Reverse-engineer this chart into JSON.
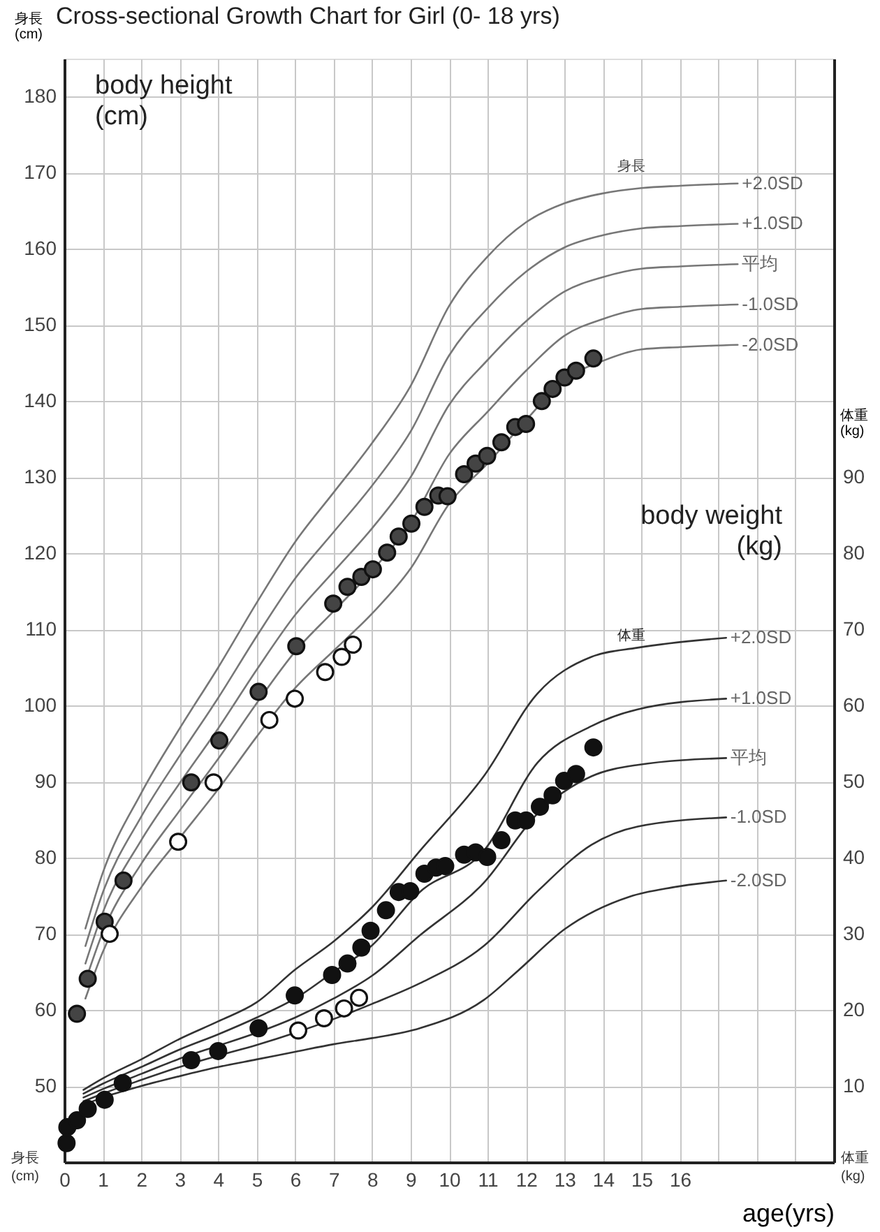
{
  "chart_data": {
    "type": "line",
    "title": "Cross-sectional Growth Chart for Girl (0- 18 yrs)",
    "xlabel": "age(yrs)",
    "ylabel": "身長\n(cm)",
    "y2label": "体重\n(kg)",
    "xlim": [
      0,
      20
    ],
    "xticks": [
      0,
      1,
      2,
      3,
      4,
      5,
      6,
      7,
      8,
      9,
      10,
      11,
      12,
      13,
      14,
      15,
      16,
      {
        "value": 17,
        "label": null
      },
      {
        "value": 18,
        "label": null
      },
      {
        "value": 19,
        "label": null
      },
      {
        "value": 20,
        "label": null
      }
    ],
    "ylim": [
      40,
      185
    ],
    "yticks": [
      50,
      60,
      70,
      80,
      90,
      100,
      110,
      120,
      130,
      140,
      150,
      160,
      170,
      180
    ],
    "y2lim": [
      0,
      145
    ],
    "y2ticks": [
      10,
      20,
      30,
      40,
      50,
      60,
      70,
      80,
      90
    ],
    "grid": true,
    "annotations": [
      "body height\n(cm)",
      "body weight\n(kg)",
      "身長",
      "体重",
      "身長\n(cm)",
      "体重\n(kg)"
    ],
    "series": [
      {
        "name": "+2.0SD",
        "color": "#777777",
        "x": [
          0.55,
          1,
          2,
          3,
          4,
          5,
          6,
          7,
          8,
          9,
          10,
          11,
          12,
          13,
          14,
          15,
          16,
          17.5
        ],
        "values": [
          70.7,
          78,
          88.5,
          97,
          105,
          113.5,
          121.5,
          128,
          134.5,
          142,
          152.5,
          159,
          163.5,
          166,
          167.3,
          168,
          168.3,
          168.6
        ]
      },
      {
        "name": "+1.0SD",
        "color": "#777777",
        "x": [
          0.55,
          1,
          2,
          3,
          4,
          5,
          6,
          7,
          8,
          9,
          10,
          11,
          12,
          13,
          14,
          15,
          16,
          17.5
        ],
        "values": [
          68.4,
          75.4,
          85.4,
          93.4,
          101,
          109.1,
          116.7,
          122.8,
          128.9,
          136,
          146,
          152.2,
          157,
          160.2,
          161.8,
          162.7,
          163,
          163.3
        ]
      },
      {
        "name": "平均",
        "color": "#777777",
        "x": [
          0.55,
          1,
          2,
          3,
          4,
          5,
          6,
          7,
          8,
          9,
          10,
          11,
          12,
          13,
          14,
          15,
          16,
          17.5
        ],
        "values": [
          66.1,
          72.8,
          82.3,
          89.8,
          97,
          104.7,
          111.9,
          117.6,
          123.3,
          130,
          139.5,
          145.4,
          150.5,
          154.4,
          156.3,
          157.4,
          157.7,
          158
        ]
      },
      {
        "name": "-1.0SD",
        "color": "#777777",
        "x": [
          0.55,
          1,
          2,
          3,
          4,
          5,
          6,
          7,
          8,
          9,
          10,
          11,
          12,
          13,
          14,
          15,
          16,
          17.5
        ],
        "values": [
          63.8,
          70.2,
          79.2,
          86.2,
          93,
          100.3,
          107.1,
          112.4,
          117.7,
          124,
          133,
          138.6,
          144,
          148.6,
          150.8,
          152.1,
          152.4,
          152.7
        ]
      },
      {
        "name": "-2.0SD",
        "color": "#777777",
        "x": [
          0.55,
          1,
          2,
          3,
          4,
          5,
          6,
          7,
          8,
          9,
          10,
          11,
          12,
          13,
          14,
          15,
          16,
          17.5
        ],
        "values": [
          61.5,
          67.6,
          76.1,
          82.6,
          89,
          95.9,
          102.3,
          107.2,
          112.1,
          118,
          126.5,
          131.8,
          137.5,
          142.8,
          145.3,
          146.8,
          147.1,
          147.4
        ]
      },
      {
        "name": "+2.0SD",
        "color": "#333333",
        "axis": "y2",
        "x": [
          0.5,
          1,
          2,
          3,
          4,
          5,
          6,
          7,
          8,
          9.24,
          10.9,
          12.3,
          13.7,
          14.9,
          17.2
        ],
        "values": [
          9.5,
          11,
          13.5,
          16.2,
          18.5,
          21,
          25.3,
          29,
          33.5,
          40.9,
          50.7,
          61.6,
          66.4,
          67.6,
          68.9
        ]
      },
      {
        "name": "+1.0SD",
        "color": "#333333",
        "axis": "y2",
        "x": [
          0.5,
          1,
          2,
          3,
          4,
          5,
          6,
          7,
          8,
          9.24,
          10.9,
          12.3,
          13.7,
          14.9,
          17.2
        ],
        "values": [
          9,
          10.3,
          12.5,
          14.8,
          16.8,
          19,
          21.5,
          25,
          28.5,
          35.5,
          40.9,
          52.5,
          57.3,
          59.5,
          60.9
        ]
      },
      {
        "name": "平均",
        "color": "#333333",
        "axis": "y2",
        "x": [
          0.5,
          1,
          2,
          3,
          4,
          5,
          6,
          7,
          8,
          9.24,
          10.9,
          12.3,
          13.7,
          14.9,
          17.2
        ],
        "values": [
          8.5,
          9.6,
          11.6,
          13.6,
          15.3,
          17,
          19,
          21.5,
          24.5,
          29.8,
          36.7,
          45.8,
          50.7,
          52.2,
          53.1
        ]
      },
      {
        "name": "-1.0SD",
        "color": "#333333",
        "axis": "y2",
        "x": [
          0.5,
          1,
          2,
          3,
          4,
          5,
          6,
          7,
          8,
          9.24,
          10.9,
          12.3,
          13.7,
          14.9,
          17.2
        ],
        "values": [
          8,
          9,
          10.8,
          12.5,
          14,
          15.4,
          17,
          18.8,
          20.8,
          23.5,
          28.4,
          35.6,
          41.7,
          44.1,
          45.3
        ]
      },
      {
        "name": "-2.0SD",
        "color": "#333333",
        "axis": "y2",
        "x": [
          0.5,
          1,
          2,
          3,
          4,
          5,
          6,
          7,
          8,
          9.24,
          10.9,
          11.8,
          13,
          14.7,
          15.8,
          17.2
        ],
        "values": [
          7.5,
          8.5,
          10,
          11.3,
          12.5,
          13.5,
          14.5,
          15.5,
          16.3,
          17.6,
          21.3,
          25.2,
          30.6,
          34.9,
          36.1,
          37
        ]
      },
      {
        "type": "scatter",
        "marker": "circle",
        "color": "#444444",
        "x": [
          0.33,
          0.61,
          1.05,
          1.54,
          3.3,
          4.03,
          5.05,
          6.03,
          6.99,
          7.36,
          7.72,
          8.02,
          8.39,
          8.69,
          9.02,
          9.36,
          9.72,
          9.96,
          10.39,
          10.69,
          10.99,
          11.36,
          11.72,
          12.0,
          12.41,
          12.69,
          13.0,
          13.3,
          13.75
        ],
        "values": [
          59.5,
          64.1,
          71.6,
          77.0,
          89.9,
          95.4,
          101.8,
          107.8,
          113.4,
          115.6,
          116.9,
          117.9,
          120.1,
          122.2,
          123.9,
          126.1,
          127.6,
          127.5,
          130.4,
          131.8,
          132.8,
          134.6,
          136.6,
          137.0,
          140.0,
          141.6,
          143.1,
          144.0,
          145.6
        ]
      },
      {
        "type": "scatter",
        "marker": "circle",
        "color": "#ffffff",
        "x": [
          1.18,
          2.96,
          3.88,
          5.33,
          5.99,
          6.78,
          7.21,
          7.5
        ],
        "values": [
          70,
          82.1,
          89.9,
          98.1,
          100.9,
          104.4,
          106.4,
          108.0
        ]
      },
      {
        "type": "scatter",
        "marker": "circle",
        "color": "#111111",
        "axis": "y2",
        "x": [
          0.06,
          0.08,
          0.33,
          0.61,
          1.05,
          1.52,
          3.3,
          4.0,
          5.05,
          5.99,
          6.96,
          7.36,
          7.72,
          7.96,
          8.36,
          8.69,
          8.99,
          9.36,
          9.66,
          9.9,
          10.39,
          10.69,
          10.99,
          11.36,
          11.72,
          12.0,
          12.36,
          12.69,
          12.99,
          13.3,
          13.75
        ],
        "values": [
          2.5,
          4.6,
          5.5,
          7.0,
          8.2,
          10.4,
          13.4,
          14.6,
          17.6,
          21.9,
          24.6,
          26.1,
          28.2,
          30.4,
          33.1,
          35.5,
          35.6,
          37.9,
          38.7,
          38.9,
          40.4,
          40.7,
          40.1,
          42.3,
          44.9,
          44.9,
          46.7,
          48.2,
          50.1,
          51.0,
          54.5
        ]
      },
      {
        "type": "scatter",
        "marker": "circle",
        "color": "#ffffff",
        "axis": "y2",
        "x": [
          6.08,
          6.75,
          7.27,
          7.66
        ],
        "values": [
          17.3,
          18.9,
          20.2,
          21.6
        ]
      }
    ]
  }
}
